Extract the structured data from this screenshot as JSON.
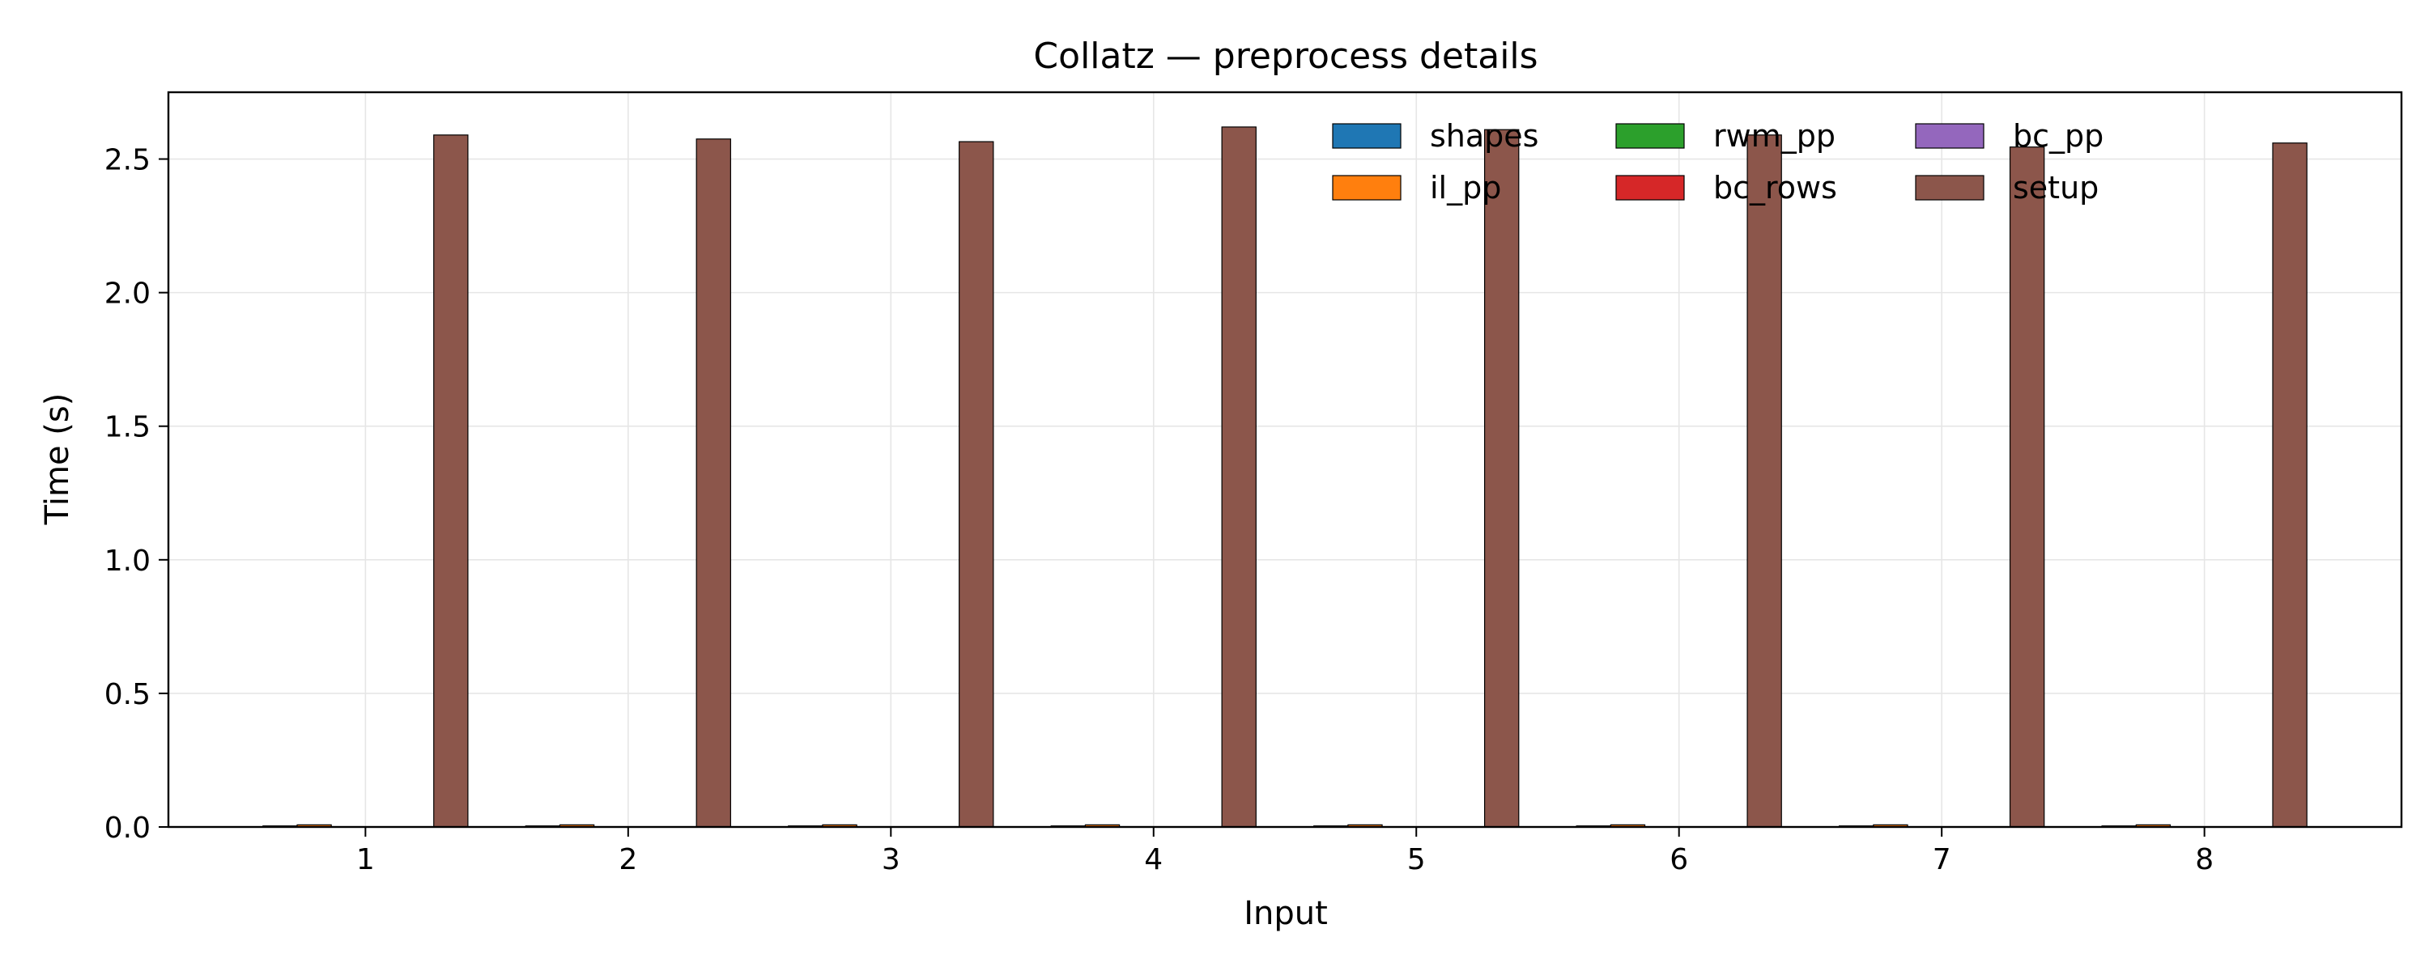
{
  "chart_data": {
    "type": "bar",
    "title": "Collatz — preprocess details",
    "xlabel": "Input",
    "ylabel": "Time (s)",
    "categories": [
      "1",
      "2",
      "3",
      "4",
      "5",
      "6",
      "7",
      "8"
    ],
    "ylim": [
      0,
      2.75
    ],
    "yticks": [
      0.0,
      0.5,
      1.0,
      1.5,
      2.0,
      2.5
    ],
    "ytick_labels": [
      "0.0",
      "0.5",
      "1.0",
      "1.5",
      "2.0",
      "2.5"
    ],
    "grid": true,
    "legend_position": "top-right",
    "legend_columns": 4,
    "series": [
      {
        "name": "shapes",
        "color": "#1f77b4",
        "values": [
          0.004,
          0.004,
          0.004,
          0.004,
          0.004,
          0.004,
          0.004,
          0.004
        ]
      },
      {
        "name": "il_pp",
        "color": "#ff7f0e",
        "values": [
          0.008,
          0.008,
          0.008,
          0.008,
          0.008,
          0.008,
          0.008,
          0.008
        ]
      },
      {
        "name": "rwm_pp",
        "color": "#2ca02c",
        "values": [
          0.001,
          0.001,
          0.001,
          0.001,
          0.001,
          0.001,
          0.001,
          0.001
        ]
      },
      {
        "name": "bc_rows",
        "color": "#d62728",
        "values": [
          0.001,
          0.001,
          0.001,
          0.001,
          0.001,
          0.001,
          0.001,
          0.001
        ]
      },
      {
        "name": "bc_pp",
        "color": "#9467bd",
        "values": [
          0.001,
          0.001,
          0.001,
          0.001,
          0.001,
          0.001,
          0.001,
          0.001
        ]
      },
      {
        "name": "setup",
        "color": "#8c564b",
        "values": [
          2.59,
          2.575,
          2.565,
          2.62,
          2.61,
          2.59,
          2.545,
          2.56
        ]
      }
    ]
  }
}
